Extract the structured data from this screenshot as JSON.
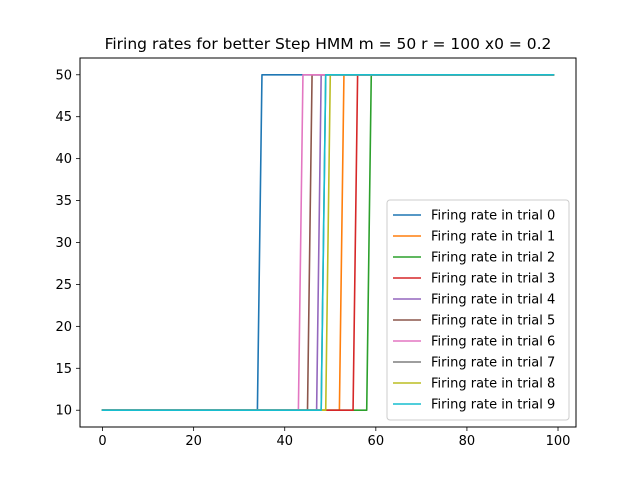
{
  "chart_data": {
    "type": "line",
    "title": "Firing rates for better Step HMM m = 50 r = 100 x0 = 0.2",
    "xlabel": "",
    "ylabel": "",
    "xlim": [
      -4.95,
      103.95
    ],
    "ylim": [
      8,
      52
    ],
    "x_ticks": [
      0,
      20,
      40,
      60,
      80,
      100
    ],
    "y_ticks": [
      10,
      15,
      20,
      25,
      30,
      35,
      40,
      45,
      50
    ],
    "x_start": 0,
    "x_end": 99,
    "low_value": 10,
    "high_value": 50,
    "grid": false,
    "legend_position": "lower right",
    "series": [
      {
        "name": "Firing rate in trial 0",
        "color": "#1f77b4",
        "step_from": 34,
        "step_to": 35
      },
      {
        "name": "Firing rate in trial 1",
        "color": "#ff7f0e",
        "step_from": 52,
        "step_to": 53
      },
      {
        "name": "Firing rate in trial 2",
        "color": "#2ca02c",
        "step_from": 58,
        "step_to": 59
      },
      {
        "name": "Firing rate in trial 3",
        "color": "#d62728",
        "step_from": 55,
        "step_to": 56
      },
      {
        "name": "Firing rate in trial 4",
        "color": "#9467bd",
        "step_from": 47,
        "step_to": 48
      },
      {
        "name": "Firing rate in trial 5",
        "color": "#8c564b",
        "step_from": 45,
        "step_to": 46
      },
      {
        "name": "Firing rate in trial 6",
        "color": "#e377c2",
        "step_from": 43,
        "step_to": 44
      },
      {
        "name": "Firing rate in trial 7",
        "color": "#7f7f7f",
        "step_from": 48,
        "step_to": 49
      },
      {
        "name": "Firing rate in trial 8",
        "color": "#bcbd22",
        "step_from": 49,
        "step_to": 50
      },
      {
        "name": "Firing rate in trial 9",
        "color": "#17becf",
        "step_from": 48,
        "step_to": 49
      }
    ]
  }
}
